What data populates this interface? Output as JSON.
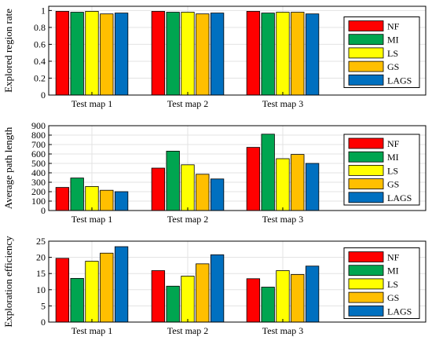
{
  "colors": {
    "NF": "#ff0000",
    "MI": "#00a550",
    "LS": "#ffff00",
    "GS": "#ffbf00",
    "LAGS": "#0070c0"
  },
  "chart_data": [
    {
      "type": "bar",
      "categories": [
        "Test map 1",
        "Test map 2",
        "Test map 3"
      ],
      "ylabel": "Explored region rate",
      "ylim": [
        0,
        1.05
      ],
      "yticks": [
        0,
        0.2,
        0.4,
        0.6,
        0.8,
        1
      ],
      "grid": true,
      "legend_position": "right",
      "series": [
        {
          "name": "NF",
          "values": [
            0.99,
            0.99,
            0.99
          ]
        },
        {
          "name": "MI",
          "values": [
            0.98,
            0.98,
            0.97
          ]
        },
        {
          "name": "LS",
          "values": [
            0.99,
            0.98,
            0.98
          ]
        },
        {
          "name": "GS",
          "values": [
            0.96,
            0.96,
            0.98
          ]
        },
        {
          "name": "LAGS",
          "values": [
            0.97,
            0.97,
            0.96
          ]
        }
      ]
    },
    {
      "type": "bar",
      "categories": [
        "Test map 1",
        "Test map 2",
        "Test map 3"
      ],
      "ylabel": "Average path length",
      "ylim": [
        0,
        900
      ],
      "yticks": [
        0,
        100,
        200,
        300,
        400,
        500,
        600,
        700,
        800,
        900
      ],
      "grid": true,
      "legend_position": "right",
      "series": [
        {
          "name": "NF",
          "values": [
            245,
            450,
            670
          ]
        },
        {
          "name": "MI",
          "values": [
            345,
            630,
            810
          ]
        },
        {
          "name": "LS",
          "values": [
            255,
            485,
            550
          ]
        },
        {
          "name": "GS",
          "values": [
            215,
            385,
            595
          ]
        },
        {
          "name": "LAGS",
          "values": [
            200,
            335,
            500
          ]
        }
      ]
    },
    {
      "type": "bar",
      "categories": [
        "Test map 1",
        "Test map 2",
        "Test map 3"
      ],
      "ylabel": "Exploration efficiency",
      "ylim": [
        0,
        25
      ],
      "yticks": [
        0,
        5,
        10,
        15,
        20,
        25
      ],
      "grid": true,
      "legend_position": "right",
      "series": [
        {
          "name": "NF",
          "values": [
            19.7,
            15.9,
            13.4
          ]
        },
        {
          "name": "MI",
          "values": [
            13.5,
            11.1,
            10.8
          ]
        },
        {
          "name": "LS",
          "values": [
            18.8,
            14.2,
            15.9
          ]
        },
        {
          "name": "GS",
          "values": [
            21.3,
            18.0,
            14.7
          ]
        },
        {
          "name": "LAGS",
          "values": [
            23.3,
            20.8,
            17.3
          ]
        }
      ]
    }
  ]
}
